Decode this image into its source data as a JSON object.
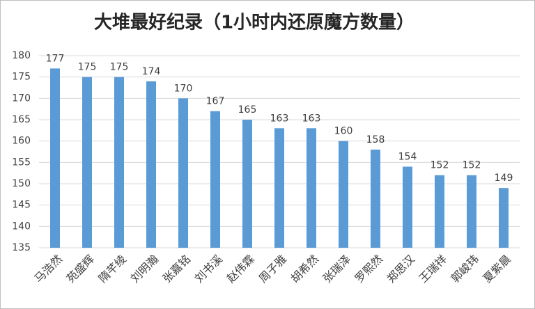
{
  "chart_data": {
    "type": "bar",
    "title": "大堆最好纪录（1小时内还原魔方数量）",
    "categories": [
      "马浩然",
      "苑盛辉",
      "隋芊绫",
      "刘明瀚",
      "张嘉铭",
      "刘书溪",
      "赵伟霖",
      "周子雅",
      "胡希然",
      "张瑞泽",
      "罗熙然",
      "郑思汉",
      "王瑞祥",
      "郭峻玮",
      "夏紫晨"
    ],
    "values": [
      177,
      175,
      175,
      174,
      170,
      167,
      165,
      163,
      163,
      160,
      158,
      154,
      152,
      152,
      149
    ],
    "color": "#5b9bd5",
    "ylim": [
      135,
      180
    ],
    "yticks": [
      135,
      140,
      145,
      150,
      155,
      160,
      165,
      170,
      175,
      180
    ],
    "grid": true
  }
}
